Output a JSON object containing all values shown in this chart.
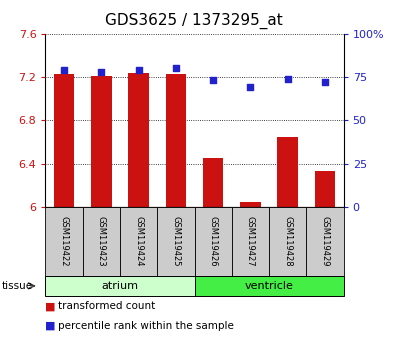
{
  "title": "GDS3625 / 1373295_at",
  "samples": [
    "GSM119422",
    "GSM119423",
    "GSM119424",
    "GSM119425",
    "GSM119426",
    "GSM119427",
    "GSM119428",
    "GSM119429"
  ],
  "bar_values": [
    7.23,
    7.21,
    7.24,
    7.23,
    6.45,
    6.05,
    6.65,
    6.33
  ],
  "dot_values_pct": [
    79,
    78,
    79,
    80,
    73,
    69,
    74,
    72
  ],
  "ylim_left": [
    6.0,
    7.6
  ],
  "ylim_right": [
    0,
    100
  ],
  "yticks_left": [
    6.0,
    6.4,
    6.8,
    7.2,
    7.6
  ],
  "ytick_labels_left": [
    "6",
    "6.4",
    "6.8",
    "7.2",
    "7.6"
  ],
  "yticks_right": [
    0,
    25,
    50,
    75,
    100
  ],
  "ytick_labels_right": [
    "0",
    "25",
    "50",
    "75",
    "100%"
  ],
  "bar_color": "#cc1111",
  "dot_color": "#2222cc",
  "bar_bottom": 6.0,
  "atrium_color": "#ccffcc",
  "ventricle_color": "#44ee44",
  "sample_box_color": "#cccccc",
  "tissue_label": "tissue",
  "legend_bar_label": "transformed count",
  "legend_dot_label": "percentile rank within the sample",
  "title_fontsize": 11,
  "tick_fontsize": 8,
  "legend_fontsize": 7.5
}
